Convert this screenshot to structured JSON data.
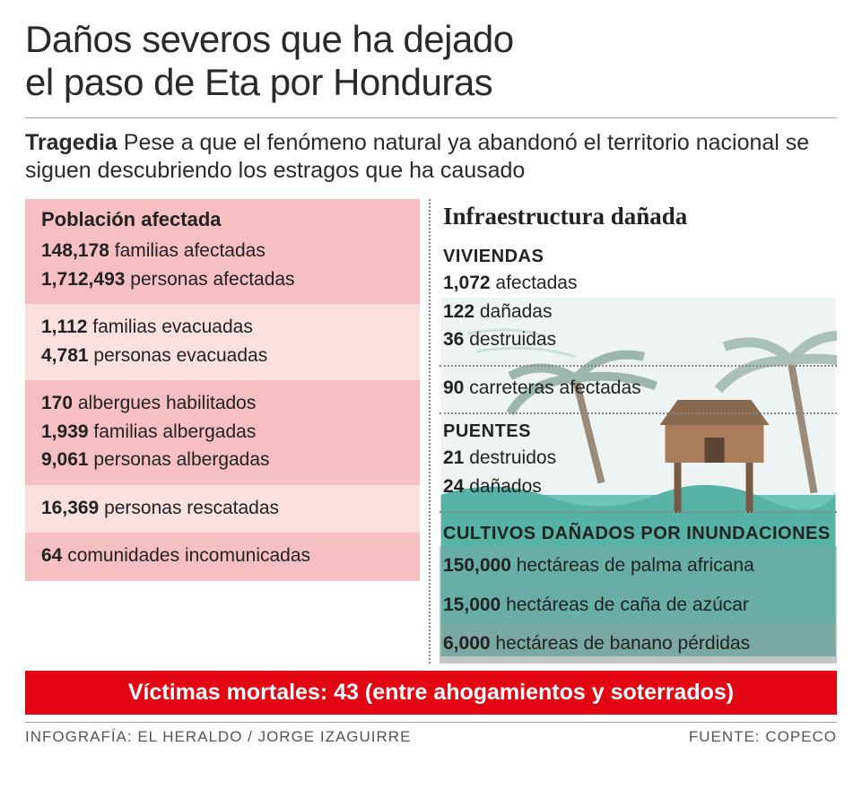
{
  "title_line1": "Daños severos que ha dejado",
  "title_line2": "el paso de Eta por Honduras",
  "subtitle_lead": "Tragedia",
  "subtitle_rest": " Pese a que el fenómeno natural ya abandonó el territorio nacional se siguen descubriendo los estragos que ha causado",
  "left": {
    "heading": "Población afectada",
    "blocks": [
      {
        "shade": "dark",
        "showHeading": true,
        "lines": [
          {
            "num": "148,178",
            "label": " familias afectadas"
          },
          {
            "num": "1,712,493",
            "label": " personas afectadas"
          }
        ]
      },
      {
        "shade": "light",
        "lines": [
          {
            "num": "1,112",
            "label": " familias evacuadas"
          },
          {
            "num": "4,781",
            "label": " personas evacuadas"
          }
        ]
      },
      {
        "shade": "dark",
        "lines": [
          {
            "num": "170",
            "label": " albergues habilitados"
          },
          {
            "num": "1,939",
            "label": " familias albergadas"
          },
          {
            "num": "9,061",
            "label": " personas albergadas"
          }
        ]
      },
      {
        "shade": "light",
        "lines": [
          {
            "num": "16,369",
            "label": " personas rescatadas"
          }
        ]
      },
      {
        "shade": "dark",
        "lines": [
          {
            "num": "64",
            "label": " comunidades incomunicadas"
          }
        ]
      }
    ]
  },
  "right": {
    "heading": "Infraestructura dañada",
    "viviendas": {
      "title": "VIVIENDAS",
      "lines": [
        {
          "num": "1,072",
          "label": " afectadas"
        },
        {
          "num": "122",
          "label": " dañadas"
        },
        {
          "num": "36",
          "label": " destruidas"
        }
      ]
    },
    "carreteras": {
      "num": "90",
      "label": " carreteras afectadas"
    },
    "puentes": {
      "title": "PUENTES",
      "lines": [
        {
          "num": "21",
          "label": " destruidos"
        },
        {
          "num": "24",
          "label": " dañados"
        }
      ]
    },
    "cultivos": {
      "title": "CULTIVOS DAÑADOS POR INUNDACIONES",
      "lines": [
        {
          "num": "150,000",
          "label": " hectáreas de palma africana"
        },
        {
          "num": "15,000",
          "label": " hectáreas de caña de azúcar"
        },
        {
          "num": "6,000",
          "label": " hectáreas de banano pérdidas"
        }
      ]
    }
  },
  "victimas_label": "Víctimas mortales: ",
  "victimas_num": "43",
  "victimas_paren": " (entre ahogamientos y soterrados)",
  "footer_left": "INFOGRAFÍA: EL HERALDO / JORGE IZAGUIRRE",
  "footer_right": "FUENTE: COPECO",
  "colors": {
    "shade_dark": "#f6bfc1",
    "shade_light": "#fbe0e0",
    "red": "#e30613",
    "text": "#2a2a2a",
    "sea": "#6fc4b8",
    "sky": "#e8f1f1",
    "house": "#9c6b4f",
    "palm": "#b8c8c8"
  },
  "title_fontsize": 42,
  "subtitle_fontsize": 25,
  "stat_fontsize": 21,
  "infra_heading_fontsize": 27,
  "victimas_fontsize": 25
}
